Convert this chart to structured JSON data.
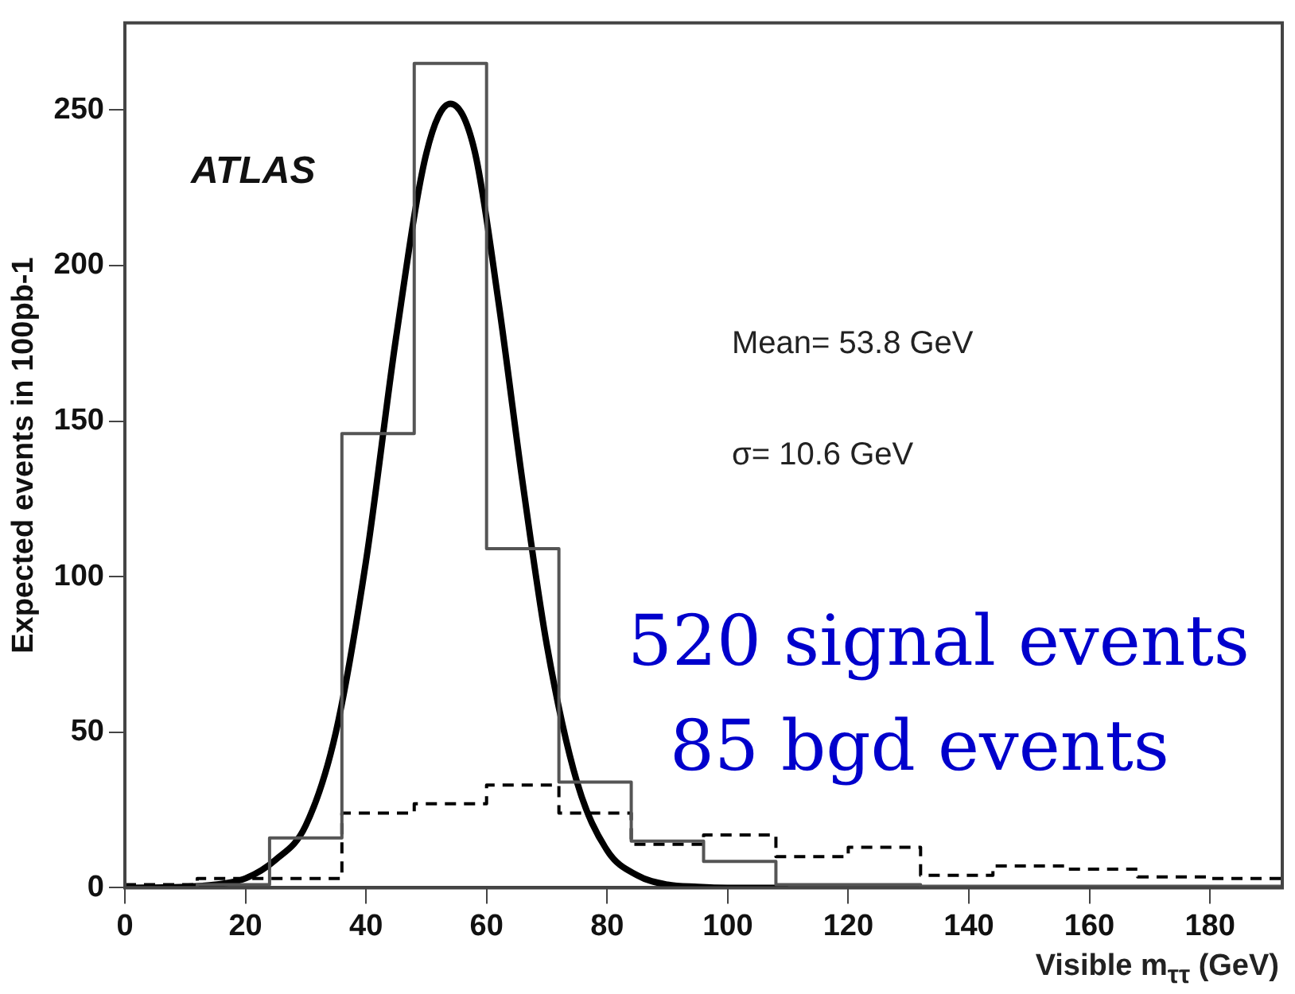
{
  "chart_data": {
    "type": "histogram",
    "xlabel": "Visible m$_{ττ}$ (GeV)",
    "ylabel": "Expected events in 100pb-1",
    "bins": [
      0,
      12,
      24,
      36,
      48,
      60,
      72,
      84,
      96,
      108,
      120,
      132,
      144,
      156,
      168,
      180,
      192
    ],
    "series": [
      {
        "color": "#555555",
        "line_style": "solid",
        "values": [
          0,
          1,
          16,
          146,
          265,
          109,
          34,
          15,
          8.5,
          1,
          1,
          0.5,
          0.5,
          0.5,
          0.5,
          0.5
        ]
      },
      {
        "color": "#000000",
        "line_style": "dashed",
        "values": [
          1,
          3,
          3,
          24,
          27,
          33,
          24,
          14,
          17,
          10,
          13,
          4,
          7,
          6,
          3.5,
          3
        ]
      },
      {
        "type": "line",
        "color": "#000000",
        "line_style": "solid",
        "x": [
          0,
          10,
          15,
          20,
          25,
          30,
          35,
          40,
          45,
          50,
          54,
          58,
          62,
          66,
          70,
          75,
          80,
          85,
          90,
          95,
          100,
          110
        ],
        "values": [
          0,
          0.3,
          1,
          3,
          9,
          20,
          50,
          105,
          177,
          236,
          252,
          237,
          188,
          130,
          78,
          34,
          12,
          4,
          1,
          0.3,
          0,
          0
        ]
      }
    ],
    "xlim": [
      0,
      192
    ],
    "xticks": [
      0,
      20,
      40,
      60,
      80,
      100,
      120,
      140,
      160,
      180
    ],
    "ylim": [
      0,
      278
    ],
    "yticks": [
      0,
      50,
      100,
      150,
      200,
      250
    ],
    "grid": false,
    "legend": false,
    "annotations": [
      "ATLAS",
      "Mean= 53.8 GeV",
      "σ= 10.6 GeV",
      "520 signal events",
      "85 bgd events"
    ]
  }
}
